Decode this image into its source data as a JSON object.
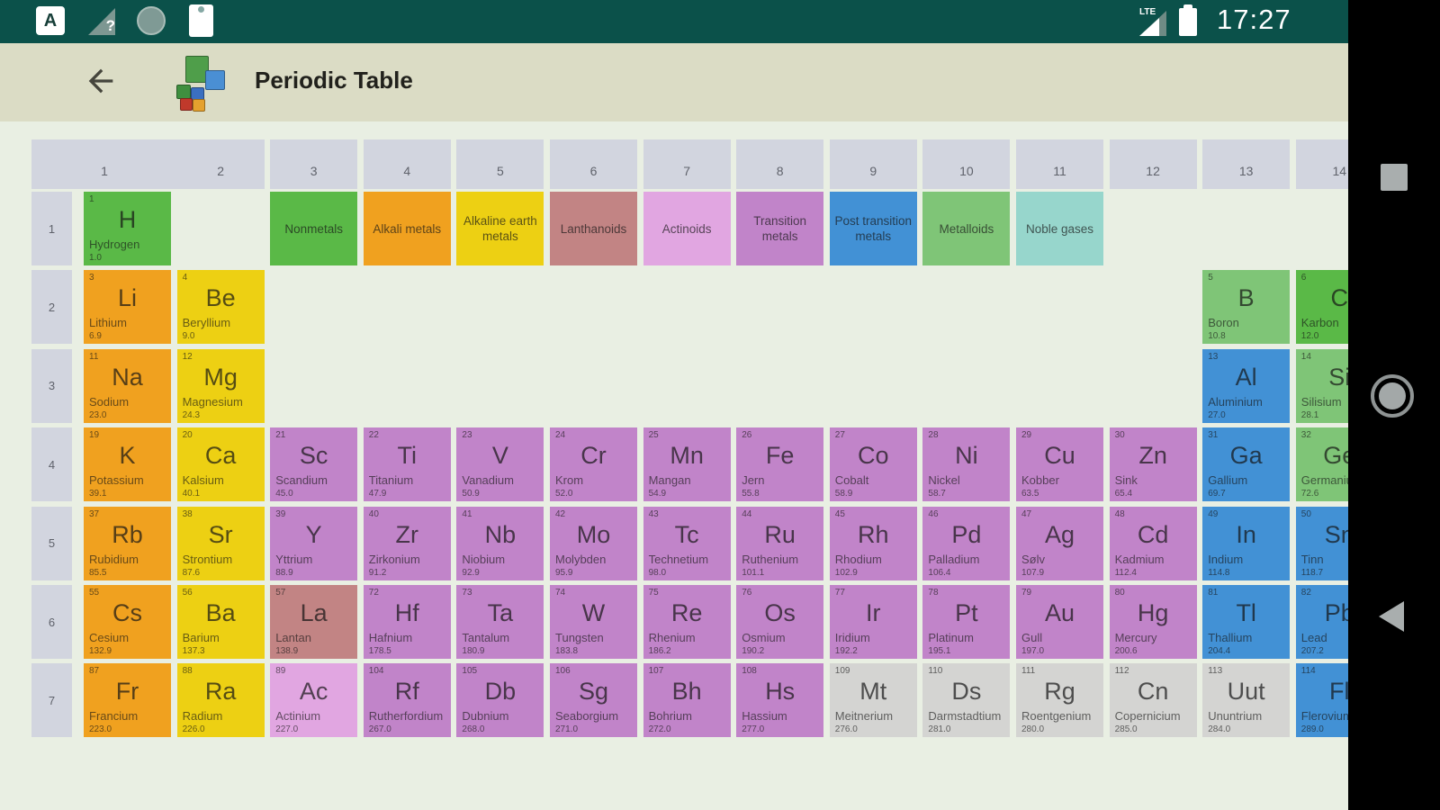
{
  "status_bar": {
    "time": "17:27",
    "carrier_label": "LTE",
    "left_icons": [
      "app-notification-icon",
      "wifi-question-icon",
      "circle-icon",
      "clipboard-icon"
    ],
    "right_icons": [
      "signal-icon",
      "battery-icon"
    ],
    "app_letter": "A",
    "wifi_question_mark": "?"
  },
  "app_bar": {
    "title": "Periodic Table"
  },
  "nav_bar": {
    "buttons": [
      "recents",
      "home",
      "back"
    ]
  },
  "colors": {
    "alkali": "#f0a11f",
    "alkaline": "#edd013",
    "nonmetal": "#5ab947",
    "metalloid": "#7fc577",
    "post": "#4291d5",
    "transition": "#c184c9",
    "lanthanoid": "#c28484",
    "actinoid": "#e1a6e1",
    "noble": "#97d6cc",
    "unknown": "#d4d4d2",
    "header_bg": "#d2d5df",
    "status_bar_bg": "#0b514a",
    "app_bar_bg": "#dbdcc5",
    "page_bg": "#e9efe3"
  },
  "table": {
    "column_headers": [
      "1",
      "2",
      "3",
      "4",
      "5",
      "6",
      "7",
      "8",
      "9",
      "10",
      "11",
      "12",
      "13",
      "14"
    ],
    "row_headers": [
      "1",
      "2",
      "3",
      "4",
      "5",
      "6",
      "7"
    ],
    "legend": [
      {
        "label": "Nonmetals",
        "category": "nonmetal",
        "col": 3
      },
      {
        "label": "Alkali metals",
        "category": "alkali",
        "col": 4
      },
      {
        "label": "Alkaline earth metals",
        "category": "alkaline",
        "col": 5
      },
      {
        "label": "Lanthanoids",
        "category": "lanthanoid",
        "col": 6
      },
      {
        "label": "Actinoids",
        "category": "actinoid",
        "col": 7
      },
      {
        "label": "Transition metals",
        "category": "transition",
        "col": 8
      },
      {
        "label": "Post transition metals",
        "category": "post",
        "col": 9
      },
      {
        "label": "Metalloids",
        "category": "metalloid",
        "col": 10
      },
      {
        "label": "Noble gases",
        "category": "noble",
        "col": 11
      }
    ],
    "elements": [
      {
        "number": "1",
        "symbol": "H",
        "name": "Hydrogen",
        "mass": "1.0",
        "row": 1,
        "col": 1,
        "category": "nonmetal"
      },
      {
        "number": "3",
        "symbol": "Li",
        "name": "Lithium",
        "mass": "6.9",
        "row": 2,
        "col": 1,
        "category": "alkali"
      },
      {
        "number": "4",
        "symbol": "Be",
        "name": "Beryllium",
        "mass": "9.0",
        "row": 2,
        "col": 2,
        "category": "alkaline"
      },
      {
        "number": "5",
        "symbol": "B",
        "name": "Boron",
        "mass": "10.8",
        "row": 2,
        "col": 13,
        "category": "metalloid"
      },
      {
        "number": "6",
        "symbol": "C",
        "name": "Karbon",
        "mass": "12.0",
        "row": 2,
        "col": 14,
        "category": "nonmetal"
      },
      {
        "number": "11",
        "symbol": "Na",
        "name": "Sodium",
        "mass": "23.0",
        "row": 3,
        "col": 1,
        "category": "alkali"
      },
      {
        "number": "12",
        "symbol": "Mg",
        "name": "Magnesium",
        "mass": "24.3",
        "row": 3,
        "col": 2,
        "category": "alkaline"
      },
      {
        "number": "13",
        "symbol": "Al",
        "name": "Aluminium",
        "mass": "27.0",
        "row": 3,
        "col": 13,
        "category": "post"
      },
      {
        "number": "14",
        "symbol": "Si",
        "name": "Silisium",
        "mass": "28.1",
        "row": 3,
        "col": 14,
        "category": "metalloid"
      },
      {
        "number": "19",
        "symbol": "K",
        "name": "Potassium",
        "mass": "39.1",
        "row": 4,
        "col": 1,
        "category": "alkali"
      },
      {
        "number": "20",
        "symbol": "Ca",
        "name": "Kalsium",
        "mass": "40.1",
        "row": 4,
        "col": 2,
        "category": "alkaline"
      },
      {
        "number": "21",
        "symbol": "Sc",
        "name": "Scandium",
        "mass": "45.0",
        "row": 4,
        "col": 3,
        "category": "transition"
      },
      {
        "number": "22",
        "symbol": "Ti",
        "name": "Titanium",
        "mass": "47.9",
        "row": 4,
        "col": 4,
        "category": "transition"
      },
      {
        "number": "23",
        "symbol": "V",
        "name": "Vanadium",
        "mass": "50.9",
        "row": 4,
        "col": 5,
        "category": "transition"
      },
      {
        "number": "24",
        "symbol": "Cr",
        "name": "Krom",
        "mass": "52.0",
        "row": 4,
        "col": 6,
        "category": "transition"
      },
      {
        "number": "25",
        "symbol": "Mn",
        "name": "Mangan",
        "mass": "54.9",
        "row": 4,
        "col": 7,
        "category": "transition"
      },
      {
        "number": "26",
        "symbol": "Fe",
        "name": "Jern",
        "mass": "55.8",
        "row": 4,
        "col": 8,
        "category": "transition"
      },
      {
        "number": "27",
        "symbol": "Co",
        "name": "Cobalt",
        "mass": "58.9",
        "row": 4,
        "col": 9,
        "category": "transition"
      },
      {
        "number": "28",
        "symbol": "Ni",
        "name": "Nickel",
        "mass": "58.7",
        "row": 4,
        "col": 10,
        "category": "transition"
      },
      {
        "number": "29",
        "symbol": "Cu",
        "name": "Kobber",
        "mass": "63.5",
        "row": 4,
        "col": 11,
        "category": "transition"
      },
      {
        "number": "30",
        "symbol": "Zn",
        "name": "Sink",
        "mass": "65.4",
        "row": 4,
        "col": 12,
        "category": "transition"
      },
      {
        "number": "31",
        "symbol": "Ga",
        "name": "Gallium",
        "mass": "69.7",
        "row": 4,
        "col": 13,
        "category": "post"
      },
      {
        "number": "32",
        "symbol": "Ge",
        "name": "Germanium",
        "mass": "72.6",
        "row": 4,
        "col": 14,
        "category": "metalloid"
      },
      {
        "number": "37",
        "symbol": "Rb",
        "name": "Rubidium",
        "mass": "85.5",
        "row": 5,
        "col": 1,
        "category": "alkali"
      },
      {
        "number": "38",
        "symbol": "Sr",
        "name": "Strontium",
        "mass": "87.6",
        "row": 5,
        "col": 2,
        "category": "alkaline"
      },
      {
        "number": "39",
        "symbol": "Y",
        "name": "Yttrium",
        "mass": "88.9",
        "row": 5,
        "col": 3,
        "category": "transition"
      },
      {
        "number": "40",
        "symbol": "Zr",
        "name": "Zirkonium",
        "mass": "91.2",
        "row": 5,
        "col": 4,
        "category": "transition"
      },
      {
        "number": "41",
        "symbol": "Nb",
        "name": "Niobium",
        "mass": "92.9",
        "row": 5,
        "col": 5,
        "category": "transition"
      },
      {
        "number": "42",
        "symbol": "Mo",
        "name": "Molybden",
        "mass": "95.9",
        "row": 5,
        "col": 6,
        "category": "transition"
      },
      {
        "number": "43",
        "symbol": "Tc",
        "name": "Technetium",
        "mass": "98.0",
        "row": 5,
        "col": 7,
        "category": "transition"
      },
      {
        "number": "44",
        "symbol": "Ru",
        "name": "Ruthenium",
        "mass": "101.1",
        "row": 5,
        "col": 8,
        "category": "transition"
      },
      {
        "number": "45",
        "symbol": "Rh",
        "name": "Rhodium",
        "mass": "102.9",
        "row": 5,
        "col": 9,
        "category": "transition"
      },
      {
        "number": "46",
        "symbol": "Pd",
        "name": "Palladium",
        "mass": "106.4",
        "row": 5,
        "col": 10,
        "category": "transition"
      },
      {
        "number": "47",
        "symbol": "Ag",
        "name": "Sølv",
        "mass": "107.9",
        "row": 5,
        "col": 11,
        "category": "transition"
      },
      {
        "number": "48",
        "symbol": "Cd",
        "name": "Kadmium",
        "mass": "112.4",
        "row": 5,
        "col": 12,
        "category": "transition"
      },
      {
        "number": "49",
        "symbol": "In",
        "name": "Indium",
        "mass": "114.8",
        "row": 5,
        "col": 13,
        "category": "post"
      },
      {
        "number": "50",
        "symbol": "Sn",
        "name": "Tinn",
        "mass": "118.7",
        "row": 5,
        "col": 14,
        "category": "post"
      },
      {
        "number": "55",
        "symbol": "Cs",
        "name": "Cesium",
        "mass": "132.9",
        "row": 6,
        "col": 1,
        "category": "alkali"
      },
      {
        "number": "56",
        "symbol": "Ba",
        "name": "Barium",
        "mass": "137.3",
        "row": 6,
        "col": 2,
        "category": "alkaline"
      },
      {
        "number": "57",
        "symbol": "La",
        "name": "Lantan",
        "mass": "138.9",
        "row": 6,
        "col": 3,
        "category": "lanthanoid"
      },
      {
        "number": "72",
        "symbol": "Hf",
        "name": "Hafnium",
        "mass": "178.5",
        "row": 6,
        "col": 4,
        "category": "transition"
      },
      {
        "number": "73",
        "symbol": "Ta",
        "name": "Tantalum",
        "mass": "180.9",
        "row": 6,
        "col": 5,
        "category": "transition"
      },
      {
        "number": "74",
        "symbol": "W",
        "name": "Tungsten",
        "mass": "183.8",
        "row": 6,
        "col": 6,
        "category": "transition"
      },
      {
        "number": "75",
        "symbol": "Re",
        "name": "Rhenium",
        "mass": "186.2",
        "row": 6,
        "col": 7,
        "category": "transition"
      },
      {
        "number": "76",
        "symbol": "Os",
        "name": "Osmium",
        "mass": "190.2",
        "row": 6,
        "col": 8,
        "category": "transition"
      },
      {
        "number": "77",
        "symbol": "Ir",
        "name": "Iridium",
        "mass": "192.2",
        "row": 6,
        "col": 9,
        "category": "transition"
      },
      {
        "number": "78",
        "symbol": "Pt",
        "name": "Platinum",
        "mass": "195.1",
        "row": 6,
        "col": 10,
        "category": "transition"
      },
      {
        "number": "79",
        "symbol": "Au",
        "name": "Gull",
        "mass": "197.0",
        "row": 6,
        "col": 11,
        "category": "transition"
      },
      {
        "number": "80",
        "symbol": "Hg",
        "name": "Mercury",
        "mass": "200.6",
        "row": 6,
        "col": 12,
        "category": "transition"
      },
      {
        "number": "81",
        "symbol": "Tl",
        "name": "Thallium",
        "mass": "204.4",
        "row": 6,
        "col": 13,
        "category": "post"
      },
      {
        "number": "82",
        "symbol": "Pb",
        "name": "Lead",
        "mass": "207.2",
        "row": 6,
        "col": 14,
        "category": "post"
      },
      {
        "number": "87",
        "symbol": "Fr",
        "name": "Francium",
        "mass": "223.0",
        "row": 7,
        "col": 1,
        "category": "alkali"
      },
      {
        "number": "88",
        "symbol": "Ra",
        "name": "Radium",
        "mass": "226.0",
        "row": 7,
        "col": 2,
        "category": "alkaline"
      },
      {
        "number": "89",
        "symbol": "Ac",
        "name": "Actinium",
        "mass": "227.0",
        "row": 7,
        "col": 3,
        "category": "actinoid"
      },
      {
        "number": "104",
        "symbol": "Rf",
        "name": "Rutherfordium",
        "mass": "267.0",
        "row": 7,
        "col": 4,
        "category": "transition"
      },
      {
        "number": "105",
        "symbol": "Db",
        "name": "Dubnium",
        "mass": "268.0",
        "row": 7,
        "col": 5,
        "category": "transition"
      },
      {
        "number": "106",
        "symbol": "Sg",
        "name": "Seaborgium",
        "mass": "271.0",
        "row": 7,
        "col": 6,
        "category": "transition"
      },
      {
        "number": "107",
        "symbol": "Bh",
        "name": "Bohrium",
        "mass": "272.0",
        "row": 7,
        "col": 7,
        "category": "transition"
      },
      {
        "number": "108",
        "symbol": "Hs",
        "name": "Hassium",
        "mass": "277.0",
        "row": 7,
        "col": 8,
        "category": "transition"
      },
      {
        "number": "109",
        "symbol": "Mt",
        "name": "Meitnerium",
        "mass": "276.0",
        "row": 7,
        "col": 9,
        "category": "unknown"
      },
      {
        "number": "110",
        "symbol": "Ds",
        "name": "Darmstadtium",
        "mass": "281.0",
        "row": 7,
        "col": 10,
        "category": "unknown"
      },
      {
        "number": "111",
        "symbol": "Rg",
        "name": "Roentgenium",
        "mass": "280.0",
        "row": 7,
        "col": 11,
        "category": "unknown"
      },
      {
        "number": "112",
        "symbol": "Cn",
        "name": "Copernicium",
        "mass": "285.0",
        "row": 7,
        "col": 12,
        "category": "unknown"
      },
      {
        "number": "113",
        "symbol": "Uut",
        "name": "Ununtrium",
        "mass": "284.0",
        "row": 7,
        "col": 13,
        "category": "unknown"
      },
      {
        "number": "114",
        "symbol": "Fl",
        "name": "Flerovium",
        "mass": "289.0",
        "row": 7,
        "col": 14,
        "category": "post"
      }
    ]
  }
}
